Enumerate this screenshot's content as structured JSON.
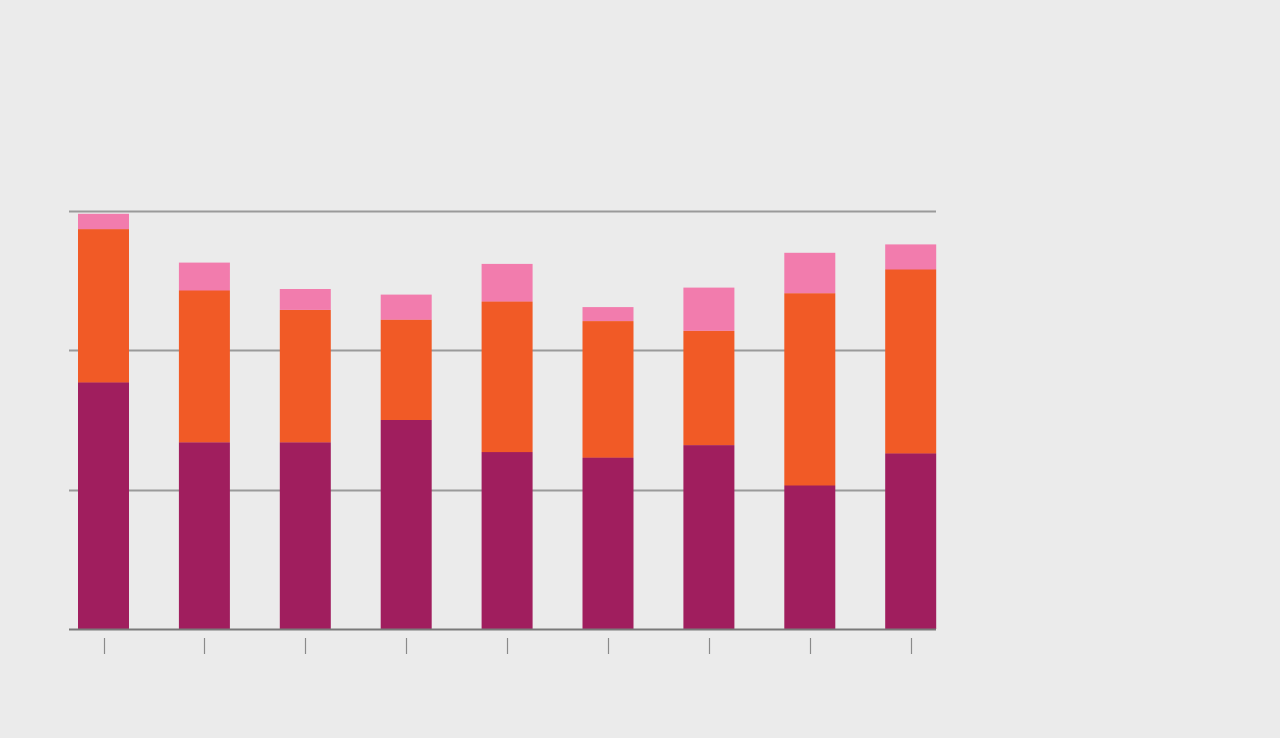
{
  "colors": {
    "background": "#ebebeb",
    "gridline": "#9a9a9a",
    "axis": "#7a7a7a",
    "tick": "#8a8a8a"
  },
  "chart_data": {
    "type": "bar",
    "stacked": true,
    "title": "",
    "xlabel": "",
    "ylabel": "",
    "tick_labels_visible": false,
    "legend": "none",
    "grid": true,
    "ylim": [
      0,
      3
    ],
    "yticks": [
      0,
      1,
      2,
      3
    ],
    "categories": [
      "1",
      "2",
      "3",
      "4",
      "5",
      "6",
      "7",
      "8",
      "9"
    ],
    "series": [
      {
        "color": "#a01e5e",
        "values": [
          1.77,
          1.34,
          1.34,
          1.5,
          1.27,
          1.23,
          1.32,
          1.03,
          1.26
        ]
      },
      {
        "color": "#f15a26",
        "values": [
          1.1,
          1.09,
          0.95,
          0.72,
          1.08,
          0.98,
          0.82,
          1.38,
          1.32
        ]
      },
      {
        "color": "#f27cad",
        "values": [
          0.11,
          0.2,
          0.15,
          0.18,
          0.27,
          0.1,
          0.31,
          0.29,
          0.18
        ]
      }
    ]
  }
}
